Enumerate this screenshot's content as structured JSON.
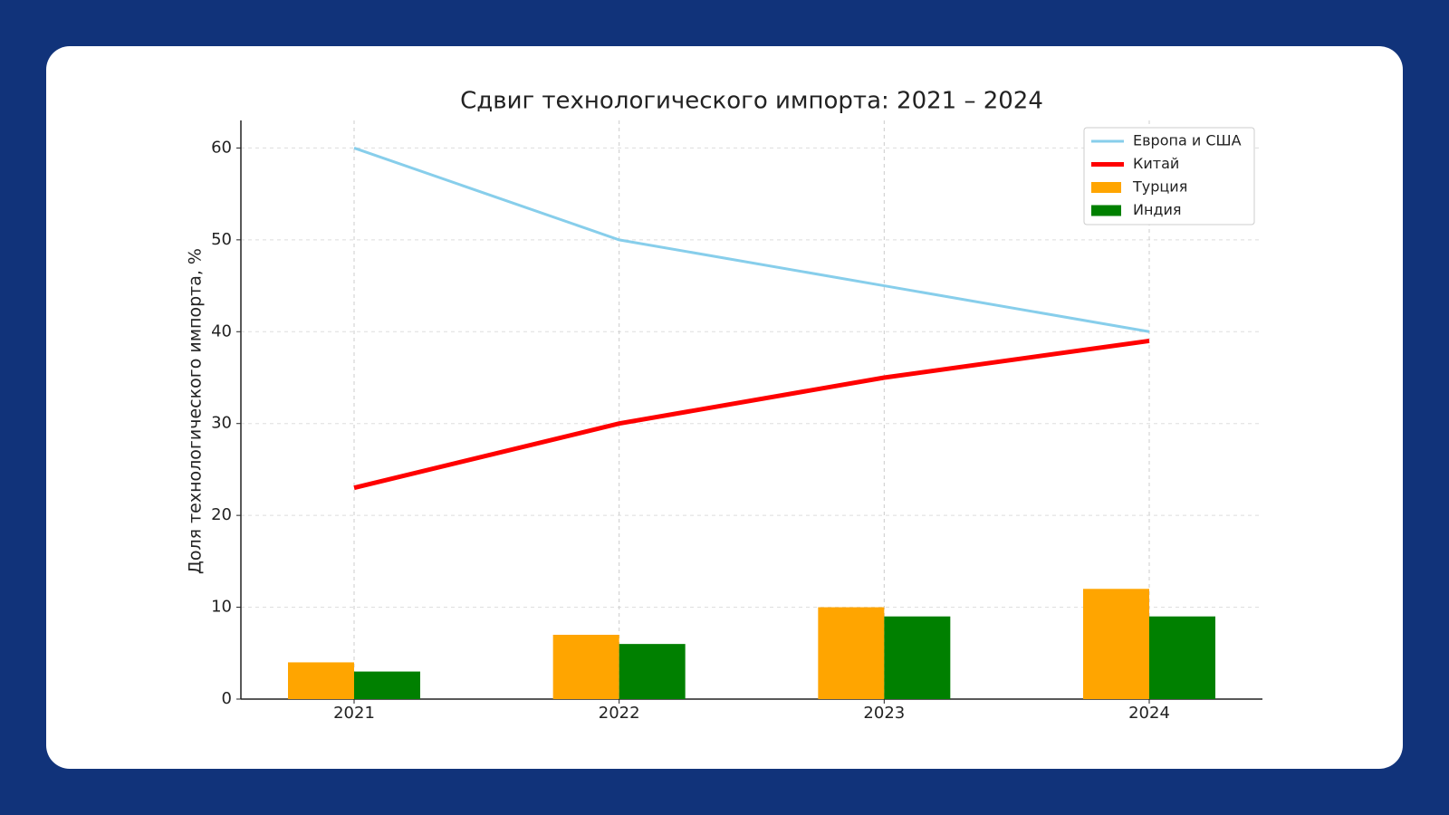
{
  "chart_data": {
    "type": "combo",
    "title": "Сдвиг технологического импорта: 2021 – 2024",
    "y_label": "Доля технологического импорта, %",
    "categories": [
      "2021",
      "2022",
      "2023",
      "2024"
    ],
    "series": [
      {
        "name": "Европа и США",
        "type": "line",
        "color": "#87ceeb",
        "values": [
          60,
          50,
          45,
          40
        ]
      },
      {
        "name": "Китай",
        "type": "line",
        "color": "#ff0000",
        "values": [
          23,
          30,
          35,
          39
        ]
      },
      {
        "name": "Турция",
        "type": "bar",
        "color": "#ffa500",
        "values": [
          4,
          7,
          10,
          12
        ]
      },
      {
        "name": "Индия",
        "type": "bar",
        "color": "#008000",
        "values": [
          3,
          6,
          9,
          9
        ]
      }
    ],
    "ylim": [
      0,
      63
    ],
    "yticks": [
      0,
      10,
      20,
      30,
      40,
      50,
      60
    ],
    "grid": true,
    "legend": "upper right"
  }
}
